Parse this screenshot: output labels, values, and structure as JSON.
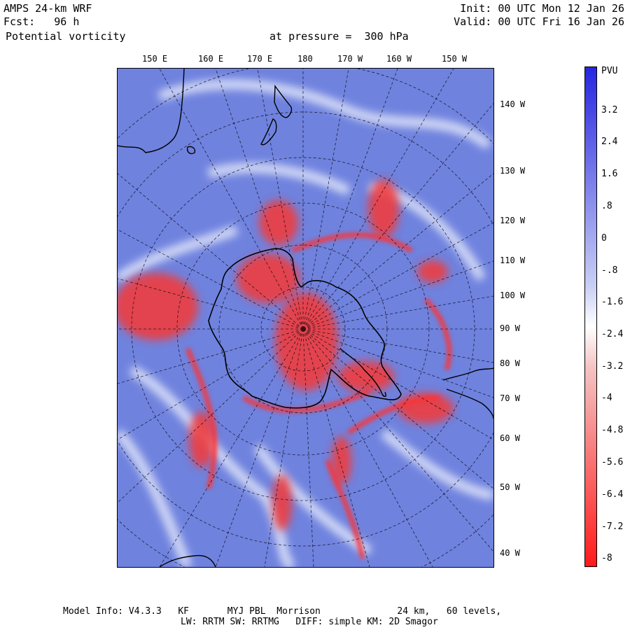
{
  "header": {
    "model": "AMPS 24-km WRF",
    "forecast": "Fcst:   96 h",
    "field": "Potential vorticity",
    "level": "at pressure =  300 hPa",
    "init": "Init: 00 UTC Mon 12 Jan 26",
    "valid": "Valid: 00 UTC Fri 16 Jan 26"
  },
  "map": {
    "top_labels": [
      "150 E",
      "160 E",
      "170 E",
      "180",
      "170 W",
      "160 W",
      "150 W"
    ],
    "right_labels": [
      "140 W",
      "130 W",
      "120 W",
      "110 W",
      "100 W",
      "90 W",
      "80 W",
      "70 W",
      "60 W",
      "50 W",
      "40 W"
    ]
  },
  "colorbar": {
    "unit": "PVU",
    "labels": [
      "3.2",
      "2.4",
      "1.6",
      ".8",
      "0",
      "-.8",
      "-1.6",
      "-2.4",
      "-3.2",
      "-4",
      "-4.8",
      "-5.6",
      "-6.4",
      "-7.2",
      "-8"
    ],
    "positive_color": "#2626e0",
    "negative_color": "#ff1a1a",
    "neutral_color": "#ffffff"
  },
  "footer": {
    "line1": "Model Info: V4.3.3   KF       MYJ PBL  Morrison              24 km,   60 levels,",
    "line2": "LW: RRTM SW: RRTMG   DIFF: simple KM: 2D Smagor"
  }
}
